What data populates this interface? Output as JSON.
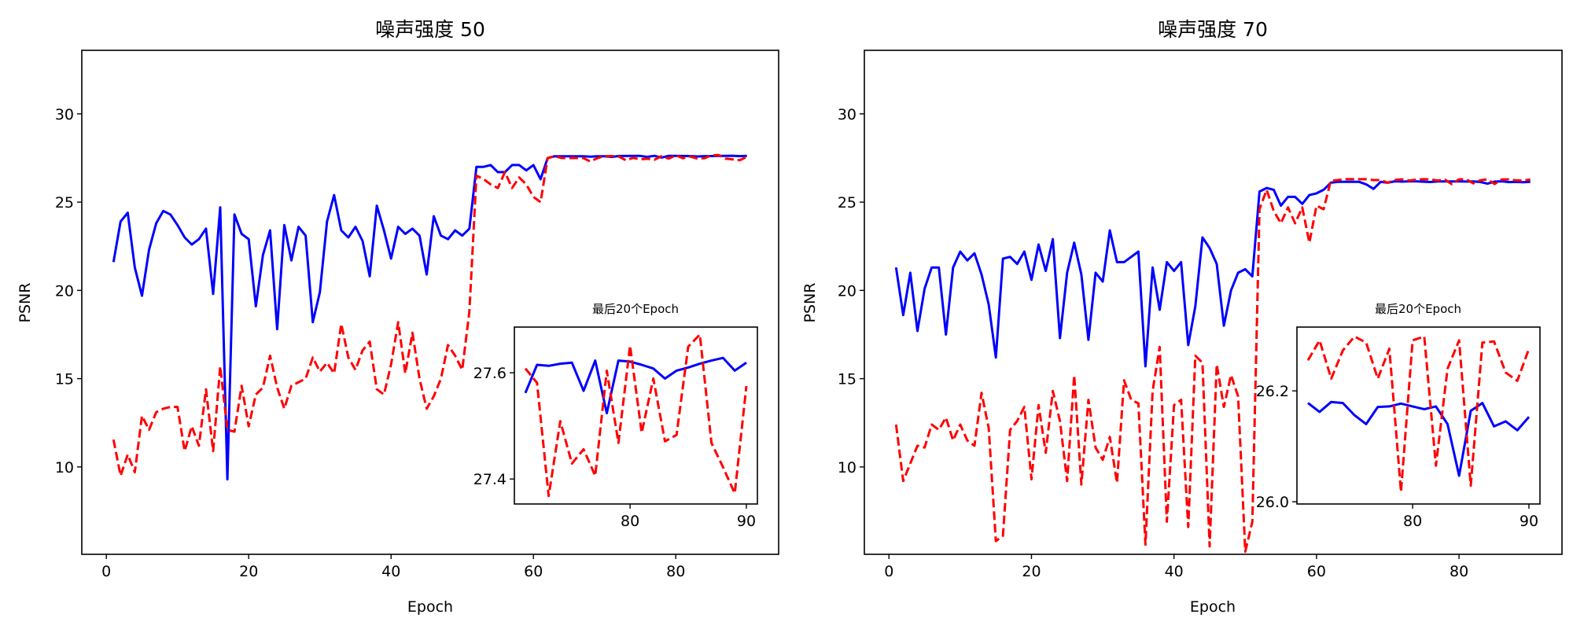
{
  "chart_data": [
    {
      "type": "line",
      "title": "噪声强度 50",
      "xlabel": "Epoch",
      "ylabel": "PSNR",
      "xlim": [
        -3.45,
        94.45
      ],
      "ylim": [
        5.05,
        33.6
      ],
      "xticks": [
        0,
        20,
        40,
        60,
        80
      ],
      "yticks": [
        10,
        15,
        20,
        25,
        30
      ],
      "grid": false,
      "x_start": 1,
      "series": [
        {
          "name": "blue-solid",
          "color": "#0000ff",
          "style": "solid",
          "values": [
            21.6,
            23.9,
            24.4,
            21.3,
            19.7,
            22.3,
            23.8,
            24.5,
            24.3,
            23.7,
            23.0,
            22.6,
            22.9,
            23.5,
            19.8,
            24.7,
            9.3,
            24.3,
            23.2,
            22.9,
            19.1,
            22.0,
            23.4,
            17.8,
            23.7,
            21.7,
            23.6,
            23.1,
            18.2,
            19.9,
            23.9,
            25.4,
            23.4,
            23.0,
            23.6,
            22.8,
            20.8,
            24.8,
            23.4,
            21.8,
            23.6,
            23.2,
            23.5,
            23.1,
            20.9,
            24.2,
            23.1,
            22.9,
            23.4,
            23.1,
            23.5,
            27.0,
            27.0,
            27.1,
            26.7,
            26.7,
            27.1,
            27.1,
            26.8,
            27.1,
            26.3,
            27.5,
            27.6,
            27.6,
            27.6,
            27.6,
            27.6,
            27.58,
            27.6,
            27.6,
            27.562,
            27.615,
            27.613,
            27.617,
            27.619,
            27.566,
            27.623,
            27.524,
            27.623,
            27.621,
            27.615,
            27.608,
            27.589,
            27.604,
            27.61,
            27.617,
            27.623,
            27.628,
            27.604,
            27.619
          ]
        },
        {
          "name": "red-dashed",
          "color": "#ff0000",
          "style": "dashed",
          "values": [
            11.55,
            9.5,
            10.7,
            9.7,
            12.9,
            12.1,
            13.1,
            13.3,
            13.4,
            13.4,
            10.9,
            12.3,
            11.2,
            14.4,
            10.9,
            15.7,
            12.1,
            12.0,
            14.6,
            12.3,
            14.1,
            14.5,
            16.3,
            14.5,
            13.3,
            14.6,
            14.8,
            15.0,
            16.2,
            15.4,
            15.9,
            15.3,
            18.1,
            16.2,
            15.5,
            16.6,
            17.1,
            14.4,
            14.1,
            15.8,
            18.2,
            15.3,
            17.6,
            15.0,
            13.3,
            14.0,
            15.0,
            16.9,
            16.3,
            15.5,
            18.8,
            26.5,
            26.3,
            26.0,
            25.8,
            26.7,
            25.8,
            26.4,
            26.0,
            25.3,
            25.0,
            27.5,
            27.6,
            27.5,
            27.5,
            27.5,
            27.5,
            27.3,
            27.5,
            27.6,
            27.608,
            27.581,
            27.368,
            27.509,
            27.429,
            27.456,
            27.406,
            27.604,
            27.468,
            27.651,
            27.487,
            27.589,
            27.471,
            27.483,
            27.649,
            27.672,
            27.468,
            27.422,
            27.373,
            27.575
          ]
        }
      ],
      "inset": {
        "title": "最后20个Epoch",
        "x_range": [
          71,
          90
        ],
        "xlim": [
          70.05,
          90.95
        ],
        "ylim": [
          27.353,
          27.686
        ],
        "xticks": [
          80,
          90
        ],
        "yticks": [
          27.4,
          27.6
        ],
        "ytick_labels": [
          "27.4",
          "27.6"
        ]
      }
    },
    {
      "type": "line",
      "title": "噪声强度 70",
      "xlabel": "Epoch",
      "ylabel": "PSNR",
      "xlim": [
        -3.45,
        94.45
      ],
      "ylim": [
        5.05,
        33.6
      ],
      "xticks": [
        0,
        20,
        40,
        60,
        80
      ],
      "yticks": [
        10,
        15,
        20,
        25,
        30
      ],
      "grid": false,
      "x_start": 1,
      "series": [
        {
          "name": "blue-solid",
          "color": "#0000ff",
          "style": "solid",
          "values": [
            21.3,
            18.6,
            21.0,
            17.7,
            20.1,
            21.3,
            21.3,
            17.5,
            21.3,
            22.2,
            21.7,
            22.1,
            20.9,
            19.2,
            16.2,
            21.8,
            21.9,
            21.5,
            22.2,
            20.6,
            22.6,
            21.1,
            22.9,
            17.3,
            21.0,
            22.7,
            20.9,
            17.2,
            21.0,
            20.5,
            23.4,
            21.6,
            21.6,
            21.9,
            22.2,
            15.7,
            21.3,
            18.9,
            21.6,
            21.1,
            21.6,
            16.9,
            19.1,
            23.0,
            22.4,
            21.5,
            18.0,
            20.0,
            21.0,
            21.2,
            20.8,
            25.6,
            25.8,
            25.7,
            24.8,
            25.3,
            25.3,
            24.9,
            25.4,
            25.5,
            25.7,
            26.1,
            26.15,
            26.15,
            26.15,
            26.15,
            26.0,
            25.75,
            26.15,
            26.1,
            26.178,
            26.162,
            26.18,
            26.178,
            26.156,
            26.14,
            26.171,
            26.172,
            26.177,
            26.172,
            26.167,
            26.172,
            26.14,
            26.047,
            26.164,
            26.178,
            26.136,
            26.145,
            26.129,
            26.153
          ]
        },
        {
          "name": "red-dashed",
          "color": "#ff0000",
          "style": "dashed",
          "values": [
            12.4,
            9.2,
            10.2,
            11.2,
            11.1,
            12.4,
            12.1,
            12.8,
            11.5,
            12.4,
            11.5,
            11.2,
            14.2,
            12.2,
            5.8,
            6.1,
            12.1,
            12.6,
            13.4,
            9.3,
            13.5,
            10.8,
            14.3,
            12.6,
            9.2,
            15.2,
            9.0,
            13.8,
            11.1,
            10.4,
            11.7,
            9.1,
            14.9,
            13.8,
            13.6,
            5.6,
            14.3,
            16.8,
            6.9,
            13.5,
            13.8,
            6.6,
            16.3,
            15.9,
            5.5,
            15.8,
            13.4,
            15.2,
            14.0,
            5.2,
            6.9,
            24.6,
            25.7,
            24.5,
            23.8,
            24.7,
            23.8,
            24.7,
            22.7,
            24.8,
            24.6,
            26.2,
            26.25,
            26.3,
            26.3,
            26.3,
            26.3,
            26.25,
            26.25,
            26.1,
            26.255,
            26.291,
            26.222,
            26.273,
            26.298,
            26.287,
            26.222,
            26.276,
            26.018,
            26.291,
            26.298,
            26.065,
            26.24,
            26.291,
            26.029,
            26.287,
            26.289,
            26.233,
            26.218,
            26.276
          ]
        }
      ],
      "inset": {
        "title": "最后20个Epoch",
        "x_range": [
          71,
          90
        ],
        "xlim": [
          70.05,
          90.95
        ],
        "ylim": [
          25.996,
          26.315
        ],
        "xticks": [
          80,
          90
        ],
        "yticks": [
          26.0,
          26.2
        ],
        "ytick_labels": [
          "26.0",
          "26.2"
        ]
      }
    }
  ]
}
